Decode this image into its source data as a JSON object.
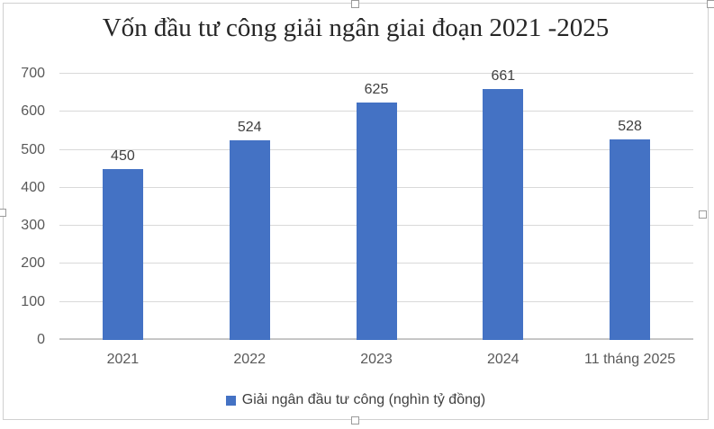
{
  "chart_data": {
    "type": "bar",
    "title": "Vốn đầu tư công giải ngân giai đoạn 2021 -2025",
    "categories": [
      "2021",
      "2022",
      "2023",
      "2024",
      "11 tháng 2025"
    ],
    "series": [
      {
        "name": "Giải ngân đầu tư công (nghìn tỷ đồng)",
        "values": [
          450,
          524,
          625,
          661,
          528
        ],
        "color": "#4472C4"
      }
    ],
    "xlabel": "",
    "ylabel": "",
    "ylim": [
      0,
      700
    ],
    "yticks": [
      0,
      100,
      200,
      300,
      400,
      500,
      600,
      700
    ],
    "grid": true,
    "data_labels": true,
    "legend_position": "bottom"
  }
}
